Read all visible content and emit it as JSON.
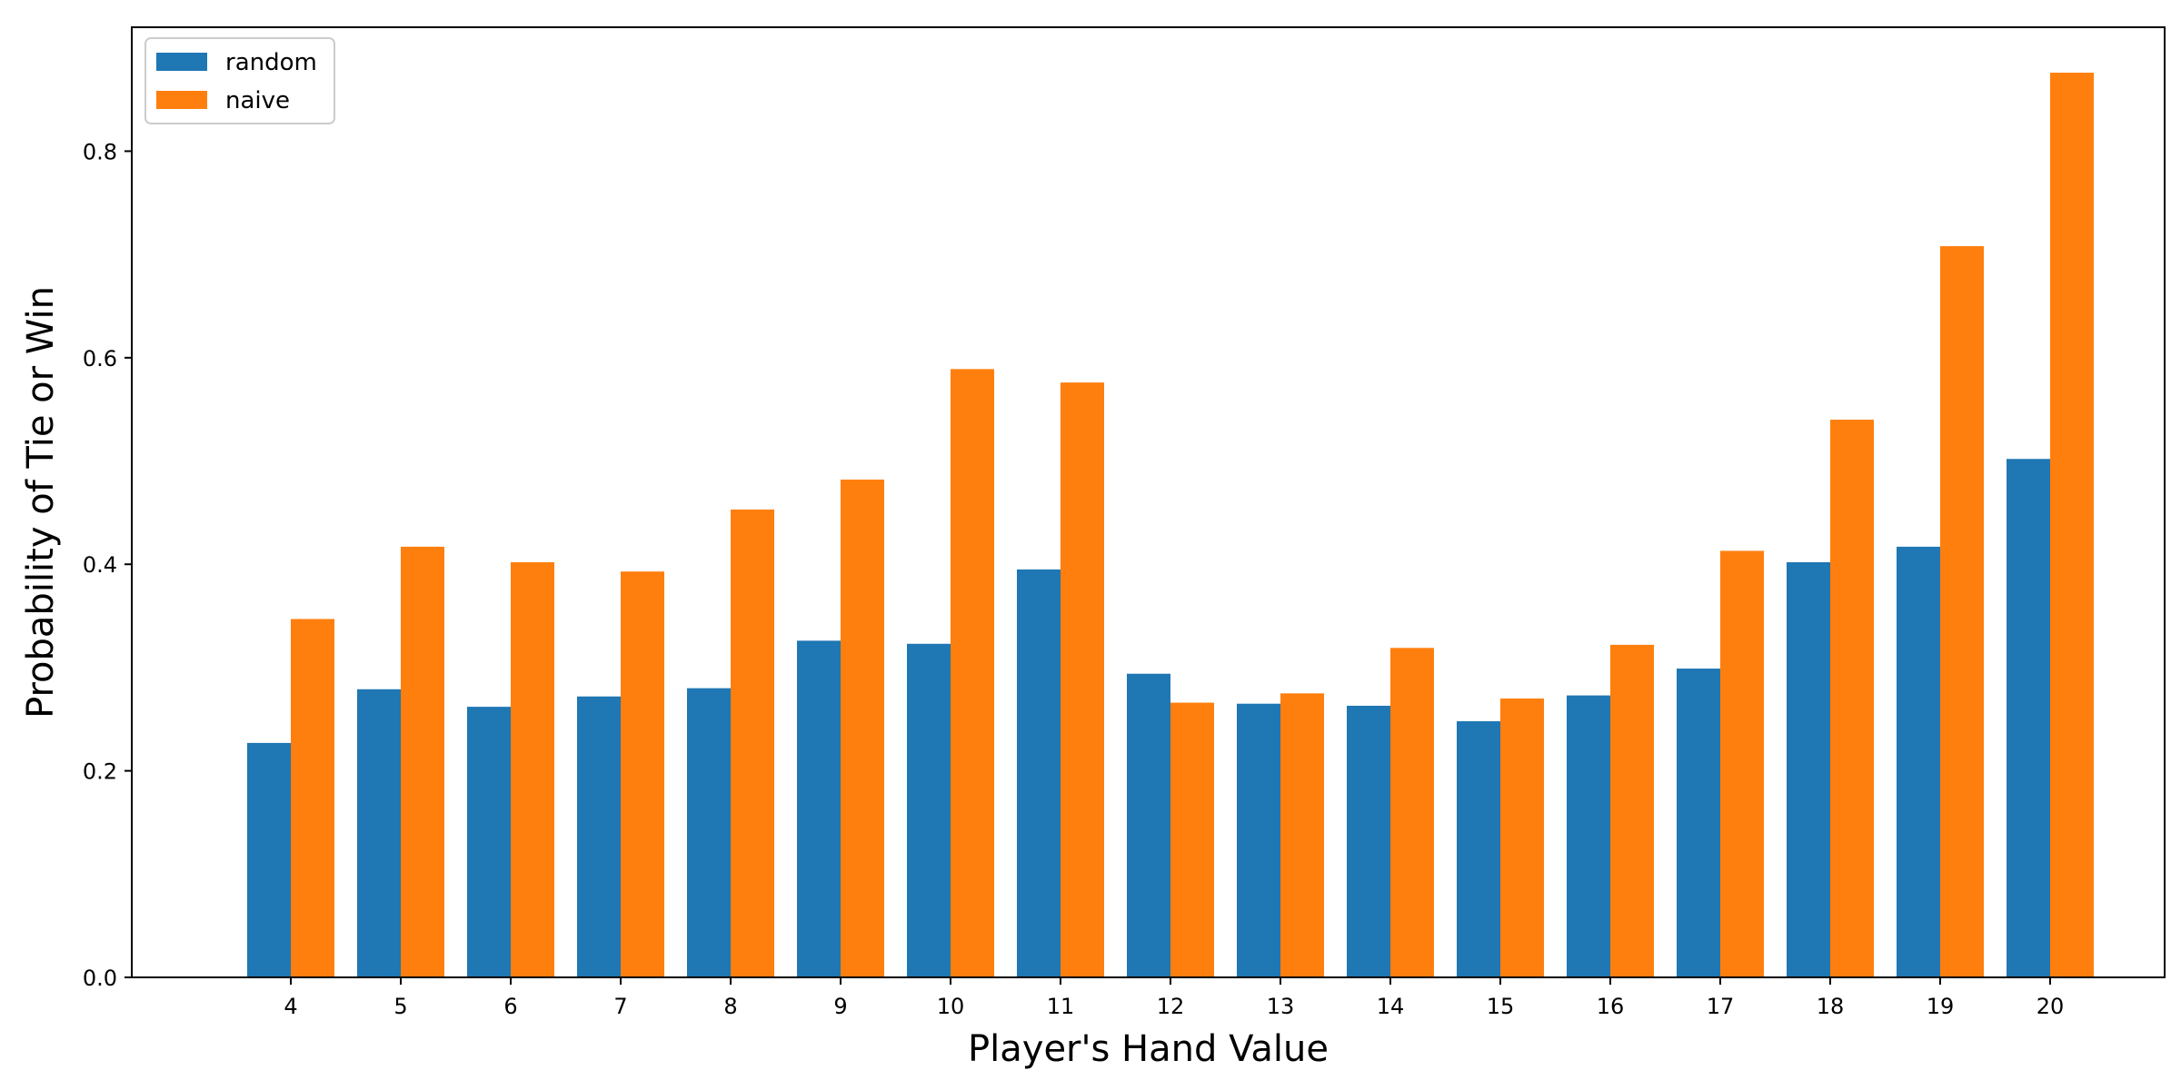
{
  "chart_data": {
    "type": "bar",
    "categories": [
      "4",
      "5",
      "6",
      "7",
      "8",
      "9",
      "10",
      "11",
      "12",
      "13",
      "14",
      "15",
      "16",
      "17",
      "18",
      "19",
      "20"
    ],
    "series": [
      {
        "name": "random",
        "color": "#1f77b4",
        "values": [
          0.227,
          0.279,
          0.262,
          0.272,
          0.28,
          0.326,
          0.323,
          0.395,
          0.294,
          0.265,
          0.263,
          0.248,
          0.273,
          0.299,
          0.402,
          0.417,
          0.502
        ]
      },
      {
        "name": "naive",
        "color": "#ff7f0e",
        "values": [
          0.347,
          0.417,
          0.402,
          0.393,
          0.453,
          0.482,
          0.589,
          0.576,
          0.266,
          0.275,
          0.319,
          0.27,
          0.322,
          0.413,
          0.54,
          0.708,
          0.876
        ]
      }
    ],
    "title": "",
    "xlabel": "Player's Hand Value",
    "ylabel": "Probability of Tie or Win",
    "ylim": [
      0,
      0.92
    ],
    "yticks": [
      "0.0",
      "0.2",
      "0.4",
      "0.6",
      "0.8"
    ],
    "grid": false,
    "legend_position": "top-left"
  }
}
